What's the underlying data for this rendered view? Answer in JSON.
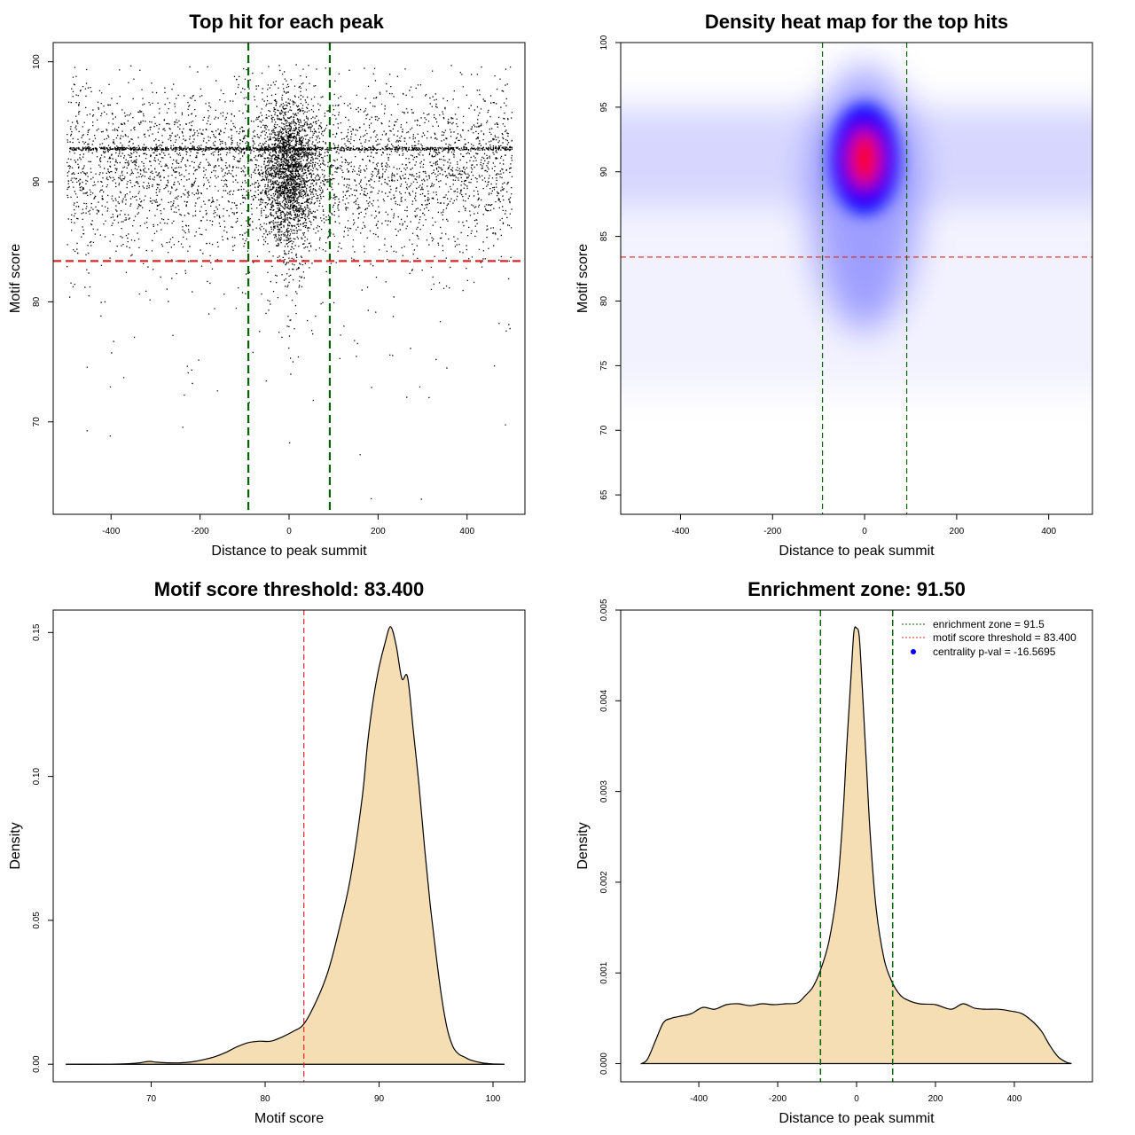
{
  "figure": {
    "background": "#ffffff"
  },
  "chart_data": [
    {
      "id": "scatter",
      "type": "scatter",
      "title": "Top hit for each peak",
      "xlabel": "Distance to peak summit",
      "ylabel": "Motif score",
      "xlim": [
        -530,
        530
      ],
      "ylim": [
        62.3,
        101.6
      ],
      "xticks": [
        -400,
        -200,
        0,
        200,
        400
      ],
      "yticks": [
        70,
        80,
        90,
        100
      ],
      "vlines": [
        {
          "x": -91.5,
          "color": "#006400"
        },
        {
          "x": 91.5,
          "color": "#006400"
        }
      ],
      "hlines": [
        {
          "y": 83.4,
          "color": "#d62728"
        }
      ],
      "points_summary": {
        "background": {
          "x_range": [
            -500,
            500
          ],
          "y_center": 91.5,
          "y_sd": 3.4
        },
        "center_cluster": {
          "x_center": 0,
          "x_sd": 30,
          "y_center": 91,
          "y_sd": 2.9
        },
        "row_band": {
          "y": 92.8
        },
        "sample_points": [
          [
            296,
            63.6
          ],
          [
            -455,
            69.3
          ],
          [
            485,
            69.8
          ],
          [
            -240,
            69.6
          ],
          [
            0,
            68.3
          ],
          [
            -455,
            74.6
          ],
          [
            -400,
            75.8
          ],
          [
            150,
            75.5
          ],
          [
            -100,
            98.6
          ],
          [
            15,
            99.8
          ],
          [
            -350,
            98.6
          ]
        ]
      },
      "point_color": "#000000"
    },
    {
      "id": "heatmap",
      "type": "heatmap",
      "title": "Density heat map for the top hits",
      "xlabel": "Distance to peak summit",
      "ylabel": "Motif score",
      "xlim": [
        -530,
        495
      ],
      "ylim": [
        63.5,
        100
      ],
      "xticks": [
        -400,
        -200,
        0,
        200,
        400
      ],
      "yticks": [
        65,
        70,
        75,
        80,
        85,
        90,
        95,
        100
      ],
      "vlines": [
        {
          "x": -91.5,
          "color": "#006400"
        },
        {
          "x": 91.5,
          "color": "#006400"
        }
      ],
      "hlines": [
        {
          "y": 83.4,
          "color": "#d62728"
        }
      ],
      "density_colors": [
        "#ffffff",
        "#0000ff",
        "#ff0000"
      ],
      "hotspot": {
        "x": 0,
        "y": 91
      }
    },
    {
      "id": "score-density",
      "type": "area",
      "title": "Motif score threshold: 83.400",
      "xlabel": "Motif score",
      "ylabel": "Density",
      "xlim": [
        61.4,
        102.8
      ],
      "ylim": [
        -0.0061,
        0.1578
      ],
      "xticks": [
        70,
        80,
        90,
        100
      ],
      "yticks": [
        0.0,
        0.05,
        0.1,
        0.15
      ],
      "ytick_labels": [
        "0.00",
        "0.05",
        "0.10",
        "0.15"
      ],
      "vlines": [
        {
          "x": 83.4,
          "color": "#d62728"
        }
      ],
      "fill": "#f5deb3",
      "x": [
        62.5,
        66,
        68,
        69,
        69.8,
        70.5,
        71.5,
        72.5,
        73.5,
        74.5,
        75.5,
        76.5,
        77.5,
        78.5,
        79.5,
        80.5,
        81.5,
        82.5,
        83.4,
        84.5,
        85.5,
        86.5,
        87.5,
        88.5,
        89,
        89.5,
        90,
        90.5,
        91,
        91.5,
        92,
        92.5,
        93,
        93.5,
        94,
        94.5,
        95,
        95.5,
        96,
        96.5,
        97,
        97.5,
        98,
        99,
        100,
        101
      ],
      "y": [
        0.0,
        0.0,
        0.0002,
        0.0005,
        0.001,
        0.0007,
        0.0005,
        0.0005,
        0.0008,
        0.0015,
        0.0025,
        0.004,
        0.006,
        0.0075,
        0.008,
        0.008,
        0.0095,
        0.0115,
        0.014,
        0.022,
        0.032,
        0.047,
        0.065,
        0.092,
        0.112,
        0.127,
        0.138,
        0.146,
        0.152,
        0.1455,
        0.134,
        0.1345,
        0.116,
        0.097,
        0.075,
        0.055,
        0.038,
        0.023,
        0.012,
        0.006,
        0.0035,
        0.0025,
        0.0015,
        0.0005,
        0.0001,
        0.0
      ]
    },
    {
      "id": "position-density",
      "type": "area",
      "title": "Enrichment zone: 91.50",
      "xlabel": "Distance to peak summit",
      "ylabel": "Density",
      "xlim": [
        -598,
        598
      ],
      "ylim": [
        -0.0002,
        0.005
      ],
      "xticks": [
        -400,
        -200,
        0,
        200,
        400
      ],
      "yticks": [
        0.0,
        0.001,
        0.002,
        0.003,
        0.004,
        0.005
      ],
      "ytick_labels": [
        "0.000",
        "0.001",
        "0.002",
        "0.003",
        "0.004",
        "0.005"
      ],
      "vlines": [
        {
          "x": -91.5,
          "color": "#006400"
        },
        {
          "x": 91.5,
          "color": "#006400"
        }
      ],
      "fill": "#f5deb3",
      "x": [
        -545,
        -530,
        -510,
        -490,
        -470,
        -450,
        -420,
        -390,
        -360,
        -330,
        -300,
        -270,
        -240,
        -210,
        -180,
        -150,
        -130,
        -110,
        -90,
        -70,
        -50,
        -35,
        -25,
        -15,
        -7,
        0,
        7,
        15,
        25,
        35,
        50,
        70,
        90,
        110,
        130,
        160,
        200,
        240,
        270,
        300,
        330,
        360,
        390,
        420,
        450,
        470,
        490,
        510,
        530,
        545
      ],
      "y": [
        0.0,
        5e-05,
        0.00025,
        0.00045,
        0.0005,
        0.00052,
        0.00055,
        0.00062,
        0.0006,
        0.00065,
        0.00066,
        0.00064,
        0.00066,
        0.00065,
        0.00066,
        0.00067,
        0.00075,
        0.00085,
        0.00105,
        0.00135,
        0.0019,
        0.0027,
        0.0035,
        0.0042,
        0.00475,
        0.0048,
        0.0047,
        0.0041,
        0.0033,
        0.0025,
        0.0017,
        0.00115,
        0.0009,
        0.00076,
        0.0007,
        0.00066,
        0.00065,
        0.0006,
        0.00066,
        0.00061,
        0.0006,
        0.0006,
        0.00058,
        0.00055,
        0.00045,
        0.00035,
        0.0002,
        8e-05,
        2e-05,
        0.0
      ],
      "legend": {
        "placement": "top-right",
        "entries": [
          {
            "label": "enrichment zone = 91.5",
            "color": "#006400",
            "style": "dotted-line"
          },
          {
            "label": "motif score threshold = 83.400",
            "color": "#d62728",
            "style": "dotted-line"
          },
          {
            "label": "centrality p-val = -16.5695",
            "color": "#0000ff",
            "style": "point"
          }
        ]
      }
    }
  ]
}
